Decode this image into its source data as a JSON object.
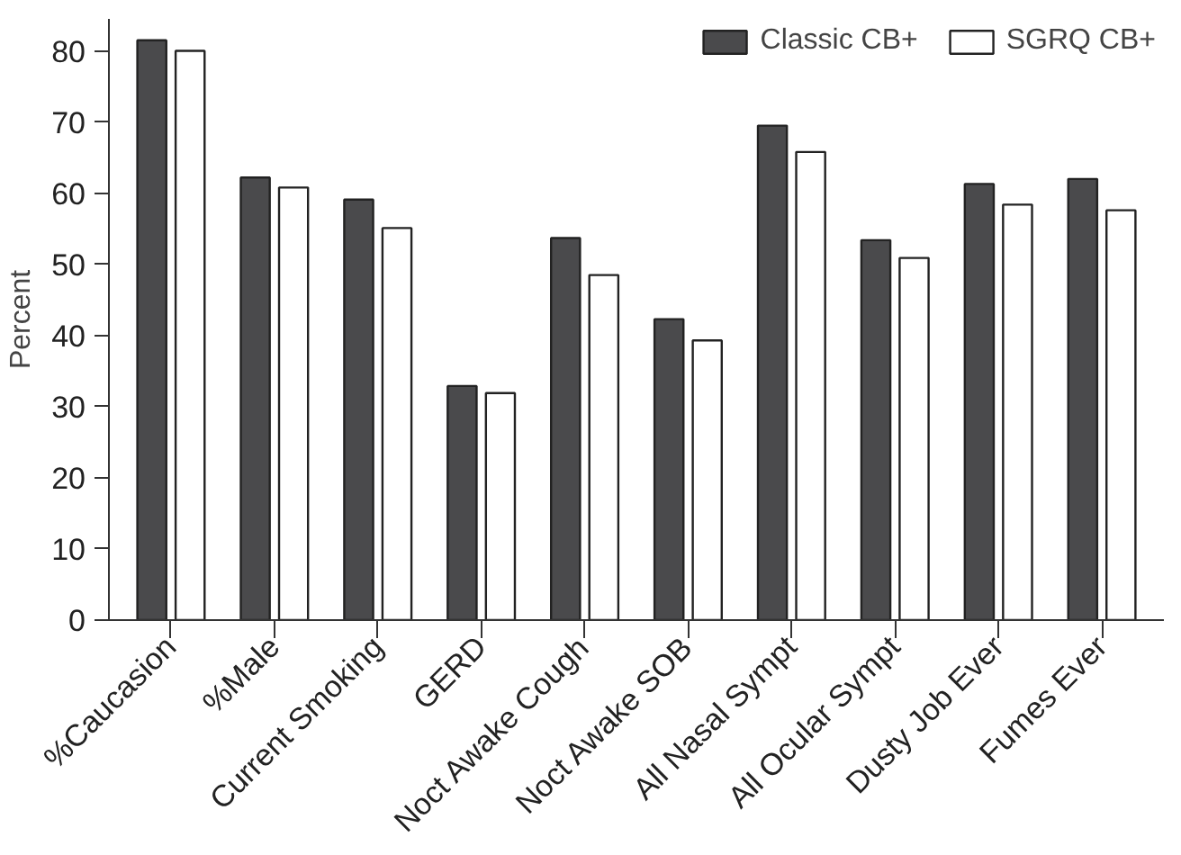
{
  "chart_data": {
    "type": "bar",
    "ylabel": "Percent",
    "categories": [
      "%Caucasion",
      "%Male",
      "Current Smoking",
      "GERD",
      "Noct Awake Cough",
      "Noct Awake SOB",
      "All Nasal Sympt",
      "All Ocular Sympt",
      "Dusty Job Ever",
      "Fumes Ever"
    ],
    "series": [
      {
        "name": "Classic CB+",
        "color": "#4a4a4c",
        "values": [
          81.5,
          62.2,
          59.1,
          32.9,
          53.7,
          42.3,
          69.5,
          53.4,
          61.3,
          62.0
        ]
      },
      {
        "name": "SGRQ CB+",
        "color": "#ffffff",
        "values": [
          80.0,
          60.8,
          55.1,
          31.9,
          48.5,
          39.3,
          65.8,
          50.9,
          58.4,
          57.6
        ]
      }
    ],
    "ylim": [
      0,
      84.5
    ],
    "yticks": [
      0,
      10,
      20,
      30,
      40,
      50,
      60,
      70,
      80
    ],
    "grid": false,
    "legend": "top right"
  }
}
